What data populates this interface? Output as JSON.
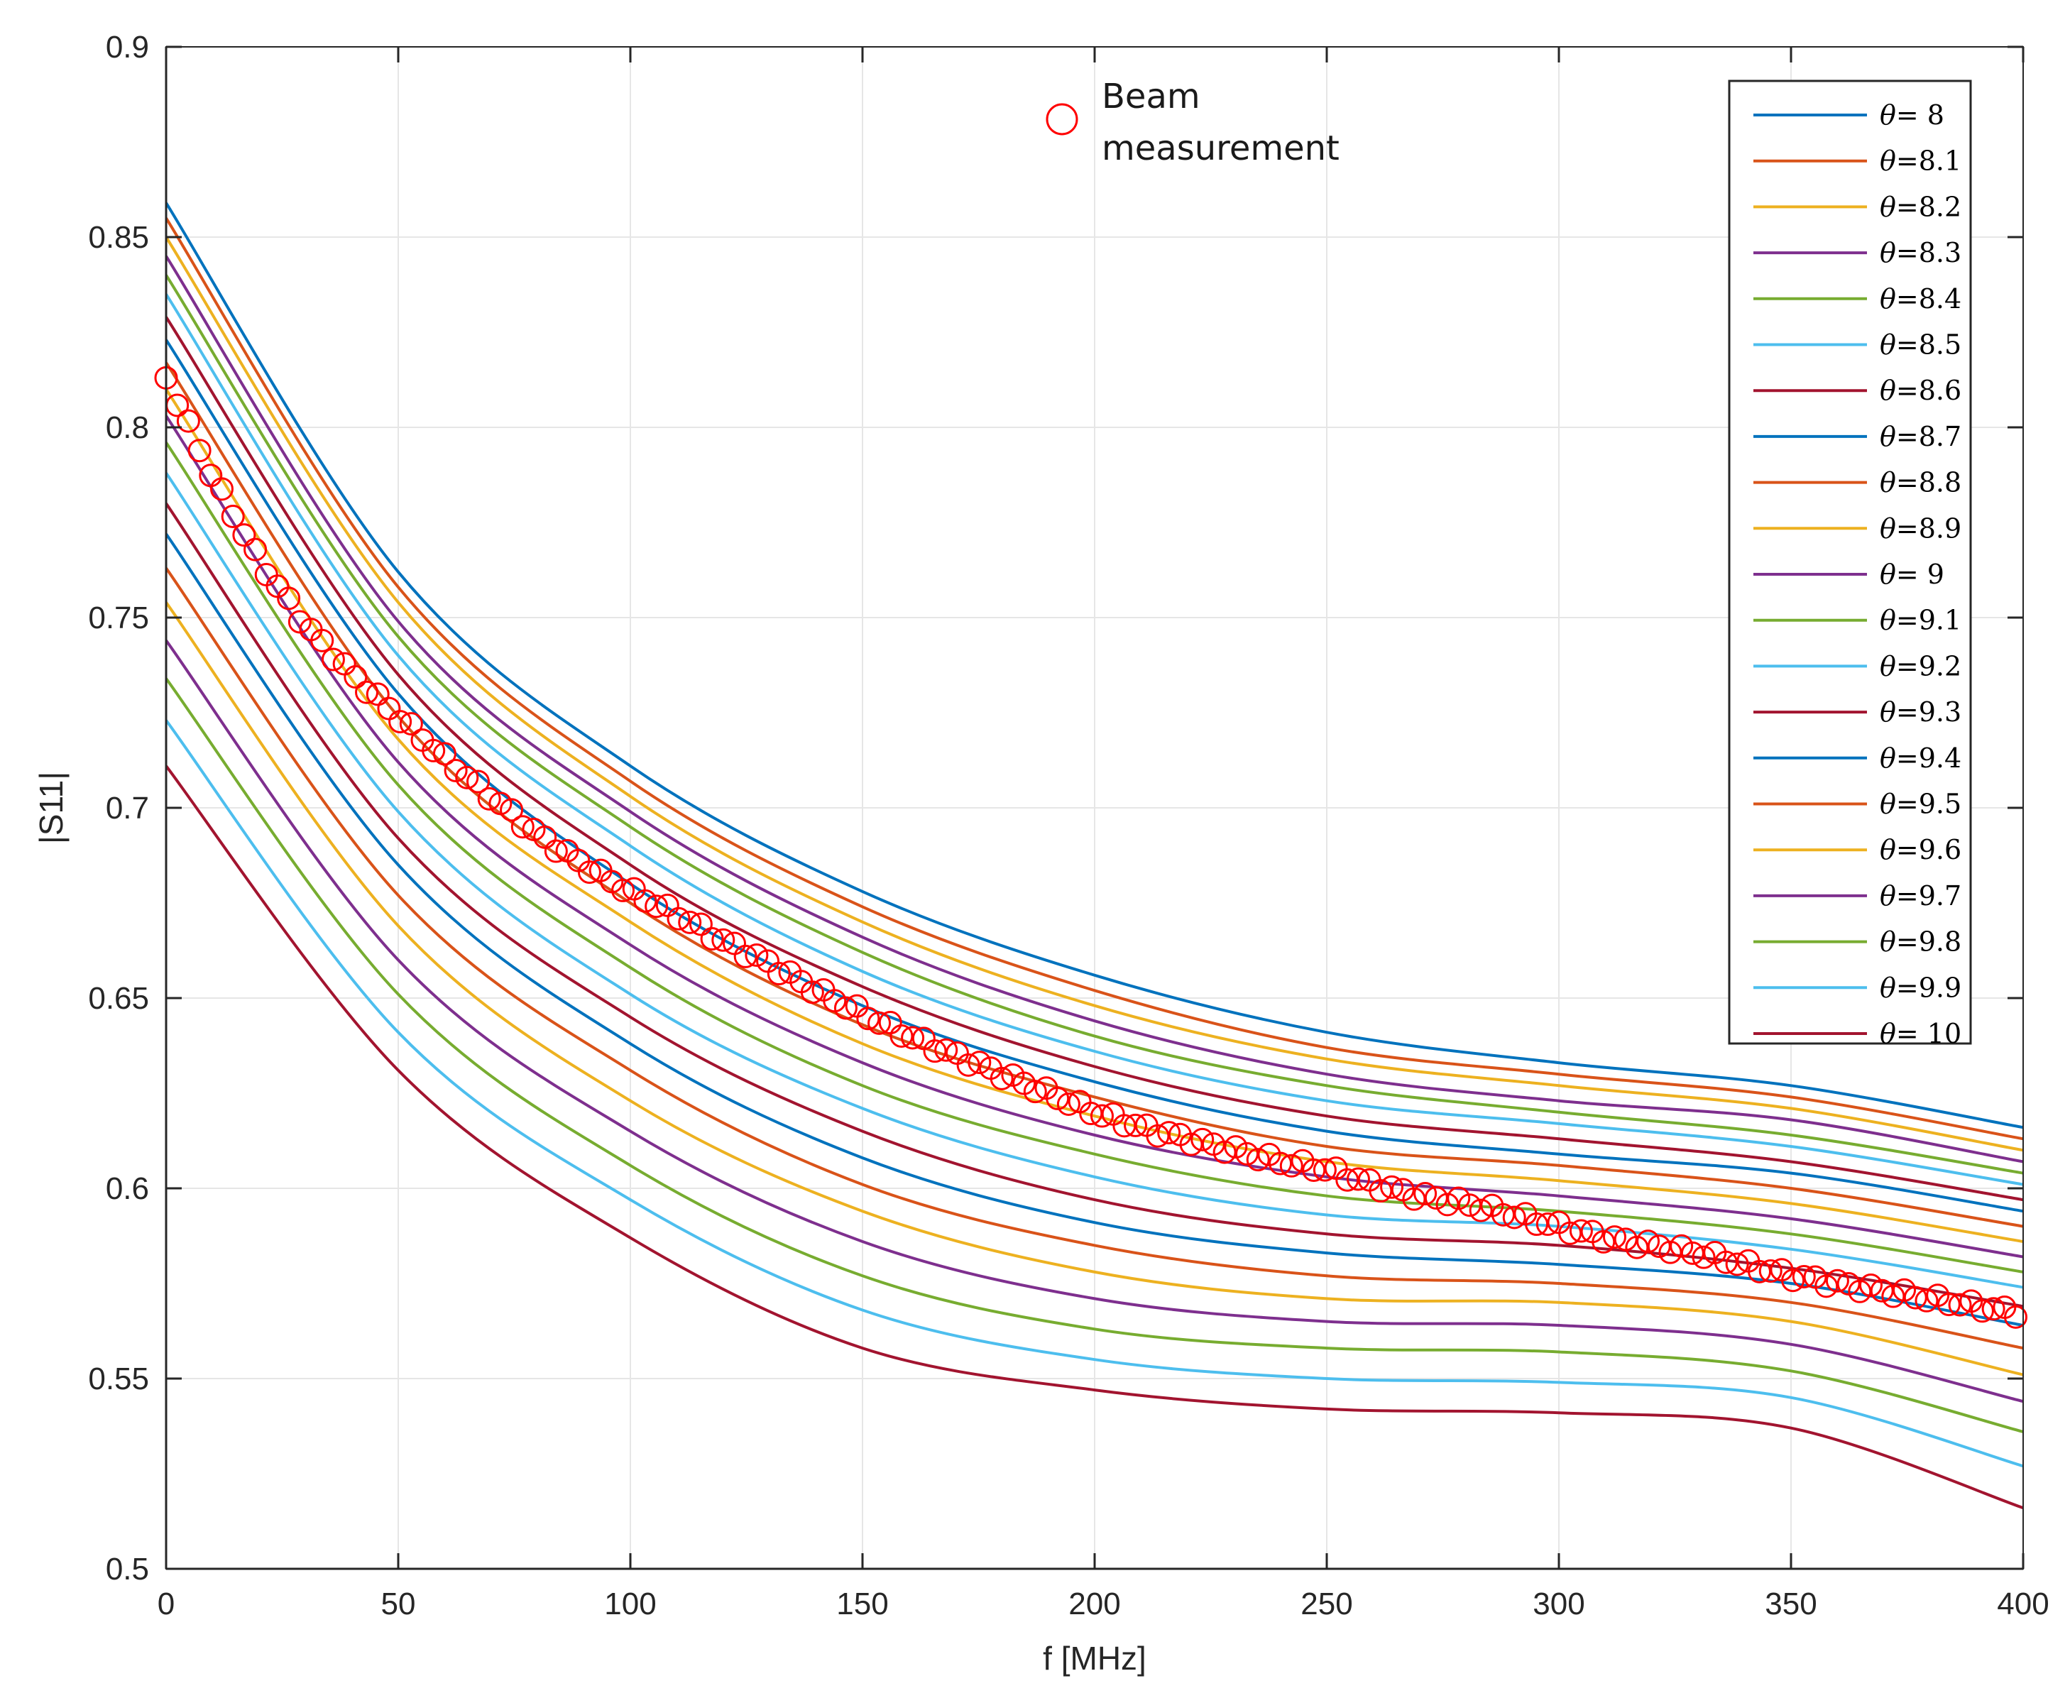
{
  "chart_data": {
    "type": "line",
    "title": "",
    "xlabel": "f [MHz]",
    "ylabel": "|S11|",
    "xlim": [
      0,
      400
    ],
    "ylim": [
      0.5,
      0.9
    ],
    "xticks": [
      0,
      50,
      100,
      150,
      200,
      250,
      300,
      350,
      400
    ],
    "xtick_labels": [
      "0",
      "50",
      "100",
      "150",
      "200",
      "250",
      "300",
      "350",
      "400"
    ],
    "yticks": [
      0.5,
      0.55,
      0.6,
      0.65,
      0.7,
      0.75,
      0.8,
      0.85,
      0.9
    ],
    "ytick_labels": [
      "0.5",
      "0.55",
      "0.6",
      "0.65",
      "0.7",
      "0.75",
      "0.8",
      "0.85",
      "0.9"
    ],
    "grid": true,
    "legend_position": "top-right",
    "legend_symbol": "θ",
    "x": [
      0,
      50,
      100,
      150,
      200,
      250,
      300,
      350,
      400
    ],
    "series": [
      {
        "name": "θ=  8",
        "value_label": "=  8",
        "color": "#0072BD",
        "values": [
          0.859,
          0.762,
          0.711,
          0.678,
          0.656,
          0.641,
          0.633,
          0.627,
          0.616
        ]
      },
      {
        "name": "θ=8.1",
        "value_label": "=8.1",
        "color": "#D95319",
        "values": [
          0.855,
          0.758,
          0.707,
          0.674,
          0.652,
          0.637,
          0.63,
          0.624,
          0.613
        ]
      },
      {
        "name": "θ=8.2",
        "value_label": "=8.2",
        "color": "#EDB120",
        "values": [
          0.85,
          0.754,
          0.703,
          0.67,
          0.648,
          0.634,
          0.627,
          0.621,
          0.61
        ]
      },
      {
        "name": "θ=8.3",
        "value_label": "=8.3",
        "color": "#7E2F8E",
        "values": [
          0.845,
          0.749,
          0.699,
          0.666,
          0.644,
          0.63,
          0.623,
          0.618,
          0.607
        ]
      },
      {
        "name": "θ=8.4",
        "value_label": "=8.4",
        "color": "#77AC30",
        "values": [
          0.84,
          0.745,
          0.695,
          0.662,
          0.64,
          0.627,
          0.62,
          0.614,
          0.604
        ]
      },
      {
        "name": "θ=8.5",
        "value_label": "=8.5",
        "color": "#4DBEEE",
        "values": [
          0.835,
          0.74,
          0.69,
          0.657,
          0.636,
          0.623,
          0.617,
          0.611,
          0.601
        ]
      },
      {
        "name": "θ=8.6",
        "value_label": "=8.6",
        "color": "#A2142F",
        "values": [
          0.829,
          0.735,
          0.685,
          0.653,
          0.632,
          0.619,
          0.613,
          0.607,
          0.597
        ]
      },
      {
        "name": "θ=8.7",
        "value_label": "=8.7",
        "color": "#0072BD",
        "values": [
          0.823,
          0.73,
          0.68,
          0.648,
          0.628,
          0.615,
          0.609,
          0.604,
          0.594
        ]
      },
      {
        "name": "θ=8.8",
        "value_label": "=8.8",
        "color": "#D95319",
        "values": [
          0.817,
          0.724,
          0.675,
          0.643,
          0.624,
          0.611,
          0.606,
          0.6,
          0.59
        ]
      },
      {
        "name": "θ=8.9",
        "value_label": "=8.9",
        "color": "#EDB120",
        "values": [
          0.81,
          0.718,
          0.67,
          0.638,
          0.619,
          0.607,
          0.602,
          0.596,
          0.586
        ]
      },
      {
        "name": "θ=  9",
        "value_label": "=  9",
        "color": "#7E2F8E",
        "values": [
          0.803,
          0.712,
          0.664,
          0.633,
          0.614,
          0.603,
          0.598,
          0.592,
          0.582
        ]
      },
      {
        "name": "θ=9.1",
        "value_label": "=9.1",
        "color": "#77AC30",
        "values": [
          0.796,
          0.706,
          0.658,
          0.627,
          0.609,
          0.598,
          0.594,
          0.588,
          0.578
        ]
      },
      {
        "name": "θ=9.2",
        "value_label": "=9.2",
        "color": "#4DBEEE",
        "values": [
          0.788,
          0.699,
          0.651,
          0.621,
          0.603,
          0.593,
          0.59,
          0.584,
          0.574
        ]
      },
      {
        "name": "θ=9.3",
        "value_label": "=9.3",
        "color": "#A2142F",
        "values": [
          0.78,
          0.692,
          0.645,
          0.615,
          0.597,
          0.588,
          0.585,
          0.579,
          0.569
        ]
      },
      {
        "name": "θ=9.4",
        "value_label": "=9.4",
        "color": "#0072BD",
        "values": [
          0.772,
          0.685,
          0.638,
          0.608,
          0.591,
          0.583,
          0.58,
          0.575,
          0.564
        ]
      },
      {
        "name": "θ=9.5",
        "value_label": "=9.5",
        "color": "#D95319",
        "values": [
          0.763,
          0.677,
          0.631,
          0.601,
          0.585,
          0.577,
          0.575,
          0.57,
          0.558
        ]
      },
      {
        "name": "θ=9.6",
        "value_label": "=9.6",
        "color": "#EDB120",
        "values": [
          0.754,
          0.669,
          0.623,
          0.594,
          0.578,
          0.571,
          0.57,
          0.565,
          0.551
        ]
      },
      {
        "name": "θ=9.7",
        "value_label": "=9.7",
        "color": "#7E2F8E",
        "values": [
          0.744,
          0.66,
          0.615,
          0.586,
          0.571,
          0.565,
          0.564,
          0.559,
          0.544
        ]
      },
      {
        "name": "θ=9.8",
        "value_label": "=9.8",
        "color": "#77AC30",
        "values": [
          0.734,
          0.651,
          0.606,
          0.577,
          0.563,
          0.558,
          0.557,
          0.552,
          0.536
        ]
      },
      {
        "name": "θ=9.9",
        "value_label": "=9.9",
        "color": "#4DBEEE",
        "values": [
          0.723,
          0.641,
          0.597,
          0.568,
          0.555,
          0.55,
          0.549,
          0.545,
          0.527
        ]
      },
      {
        "name": "θ= 10",
        "value_label": "= 10",
        "color": "#A2142F",
        "values": [
          0.711,
          0.631,
          0.587,
          0.558,
          0.547,
          0.542,
          0.541,
          0.537,
          0.516
        ]
      }
    ],
    "measurement": {
      "name": "Beam measurement",
      "label_line1": "Beam",
      "label_line2": "measurement",
      "marker": "circle",
      "color": "#FF0000",
      "x": [
        0,
        10,
        20,
        30,
        40,
        50,
        60,
        70,
        80,
        90,
        100,
        110,
        120,
        130,
        140,
        150,
        160,
        170,
        180,
        190,
        200,
        210,
        220,
        230,
        240,
        250,
        260,
        270,
        280,
        290,
        300,
        310,
        320,
        330,
        340,
        350,
        360,
        370,
        380,
        390,
        400
      ],
      "y": [
        0.813,
        0.787,
        0.765,
        0.748,
        0.735,
        0.724,
        0.713,
        0.703,
        0.693,
        0.685,
        0.678,
        0.672,
        0.665,
        0.659,
        0.652,
        0.646,
        0.64,
        0.635,
        0.63,
        0.625,
        0.62,
        0.616,
        0.613,
        0.61,
        0.607,
        0.605,
        0.601,
        0.598,
        0.596,
        0.593,
        0.59,
        0.587,
        0.585,
        0.583,
        0.58,
        0.577,
        0.575,
        0.573,
        0.571,
        0.569,
        0.567
      ]
    }
  }
}
